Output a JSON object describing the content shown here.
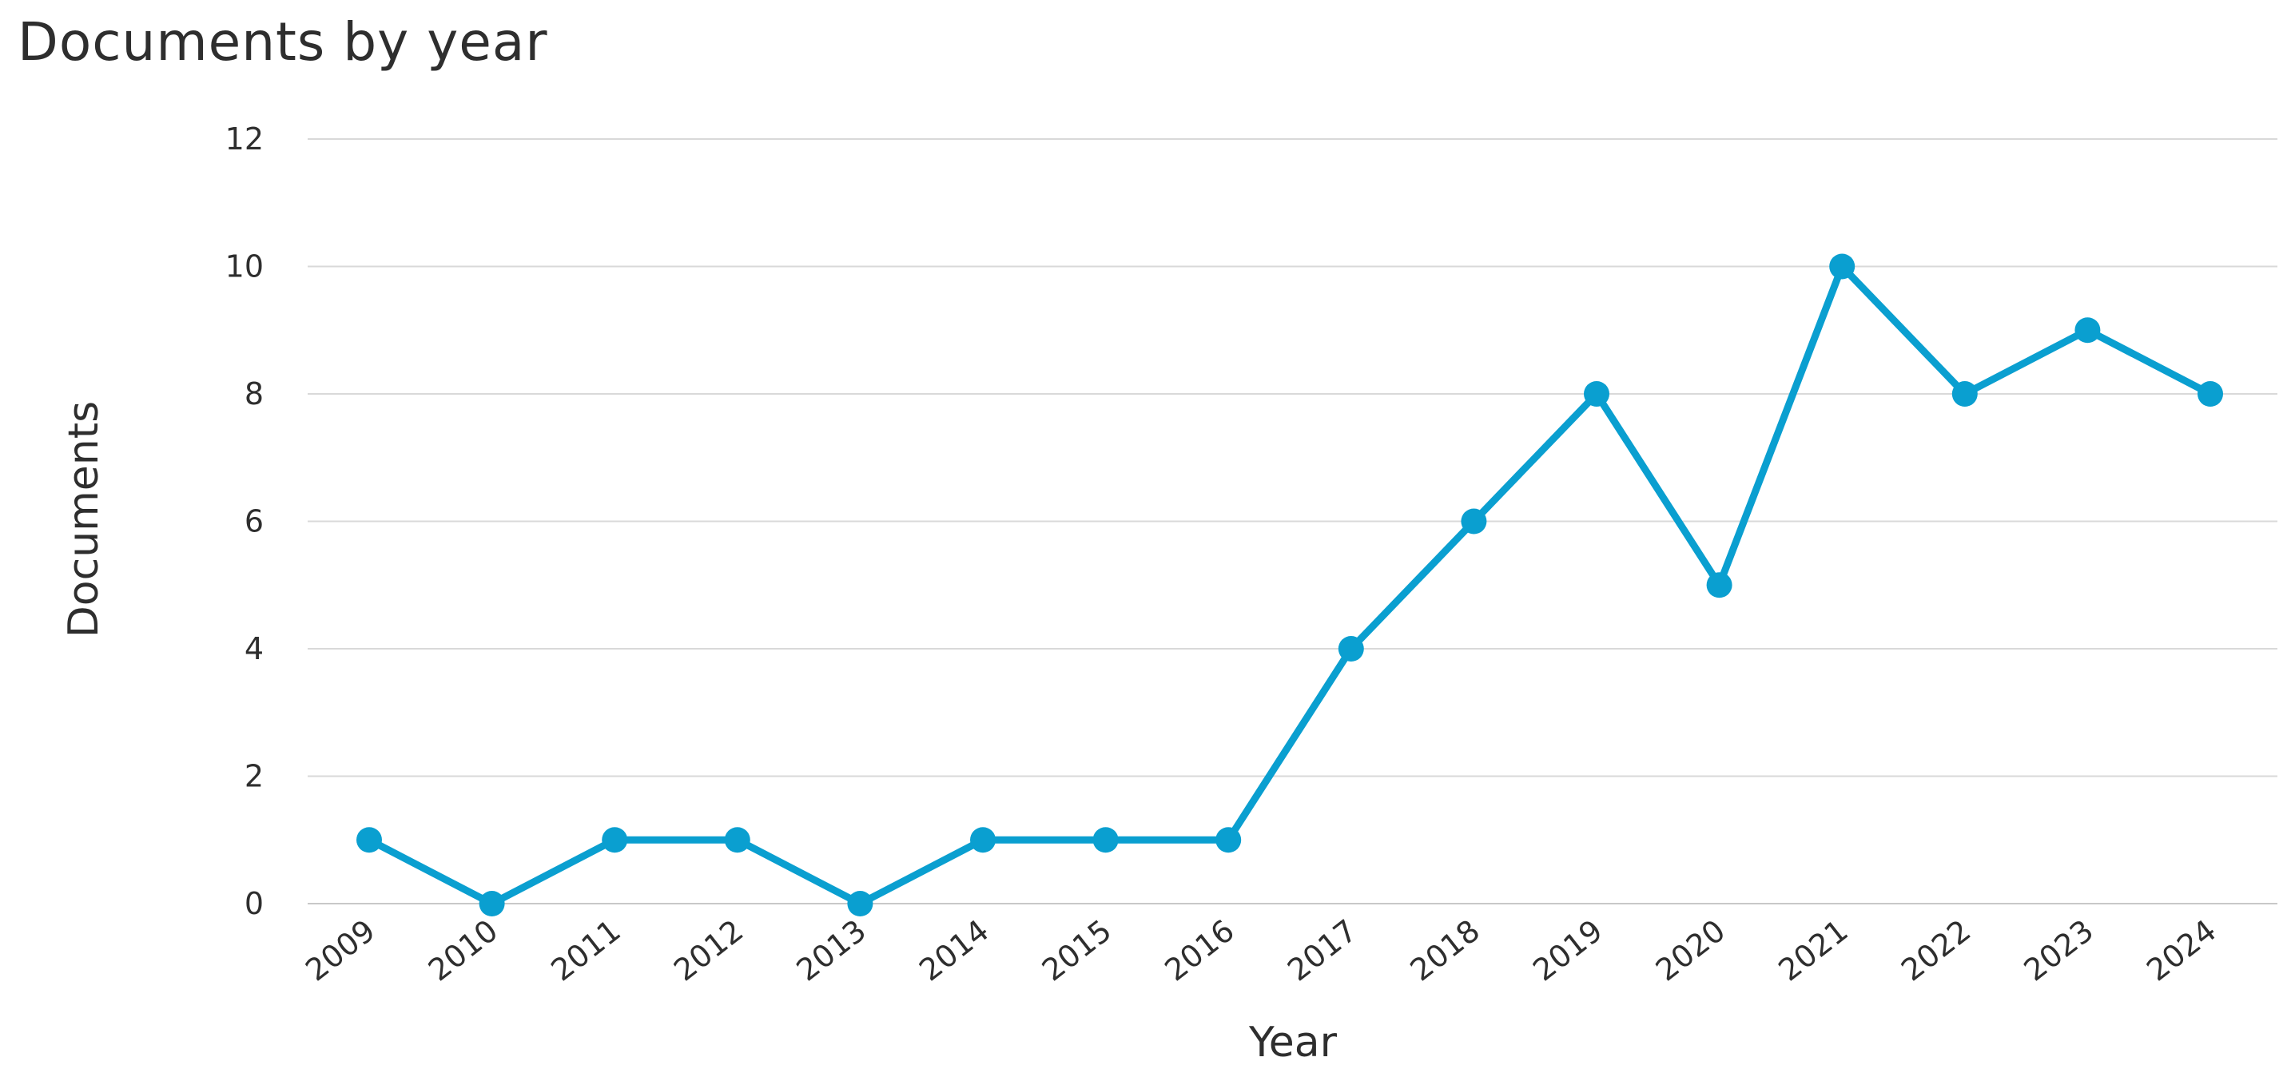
{
  "chart_data": {
    "type": "line",
    "title": "Documents by year",
    "xlabel": "Year",
    "ylabel": "Documents",
    "categories": [
      "2009",
      "2010",
      "2011",
      "2012",
      "2013",
      "2014",
      "2015",
      "2016",
      "2017",
      "2018",
      "2019",
      "2020",
      "2021",
      "2022",
      "2023",
      "2024"
    ],
    "series": [
      {
        "values": [
          1,
          0,
          1,
          1,
          0,
          1,
          1,
          1,
          4,
          6,
          8,
          5,
          10,
          8,
          9,
          8
        ]
      }
    ],
    "ylim": [
      0,
      12
    ],
    "yticks": [
      0,
      2,
      4,
      6,
      8,
      10,
      12
    ],
    "grid": true,
    "legend": "none",
    "colors": {
      "series": "#0a9fd0",
      "grid": "#d9d9d9",
      "text": "#2e2e2e"
    }
  }
}
